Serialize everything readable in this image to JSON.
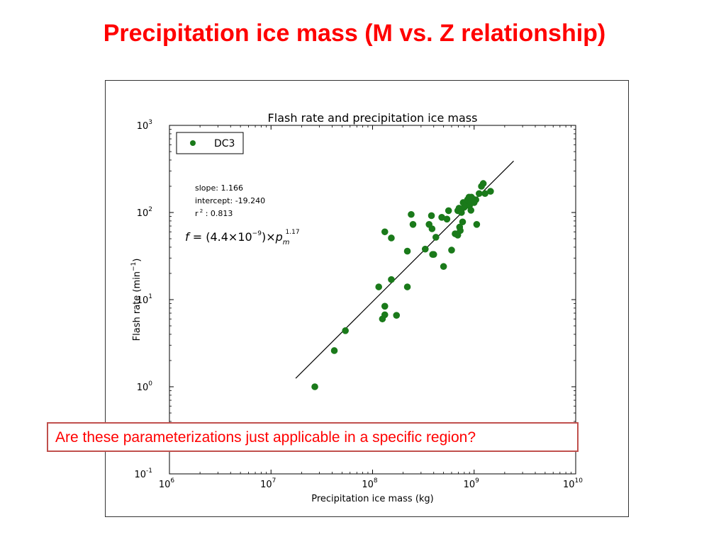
{
  "slide": {
    "title": "Precipitation ice mass (M vs. Z relationship)",
    "callout": "Are these parameterizations just applicable in a specific region?",
    "accent_color": "#ff0000",
    "callout_border_color": "#c0504d"
  },
  "chart_data": {
    "type": "scatter",
    "title": "Flash rate and precipitation ice mass",
    "xlabel": "Precipitation ice mass (kg)",
    "ylabel": "Flash rate (min",
    "ylabel_sup": "−1",
    "ylabel_tail": ")",
    "x_scale": "log",
    "y_scale": "log",
    "xlim": [
      1000000,
      10000000000
    ],
    "ylim": [
      0.1,
      1000
    ],
    "x_ticks": [
      {
        "base": "10",
        "exp": "6",
        "value": 1000000
      },
      {
        "base": "10",
        "exp": "7",
        "value": 10000000
      },
      {
        "base": "10",
        "exp": "8",
        "value": 100000000
      },
      {
        "base": "10",
        "exp": "9",
        "value": 1000000000
      },
      {
        "base": "10",
        "exp": "10",
        "value": 10000000000
      }
    ],
    "y_ticks": [
      {
        "base": "10",
        "exp": "-1",
        "value": 0.1
      },
      {
        "base": "10",
        "exp": "0",
        "value": 1
      },
      {
        "base": "10",
        "exp": "1",
        "value": 10
      },
      {
        "base": "10",
        "exp": "2",
        "value": 100
      },
      {
        "base": "10",
        "exp": "3",
        "value": 1000
      }
    ],
    "grid": false,
    "legend": {
      "position": "top-left",
      "label": "DC3",
      "color": "#1a7a1a"
    },
    "stats": {
      "slope": "slope: 1.166",
      "intercept": "intercept: -19.240",
      "r2_prefix": "r",
      "r2_sup": "2",
      "r2_value": ": 0.813"
    },
    "equation": {
      "f": "f",
      "eq": " = (4.4×10",
      "exp": "−9",
      "mid": ")×",
      "p": "p",
      "sub": "m",
      "sup": "1.17"
    },
    "fit_line": {
      "x": [
        17500000,
        2450000000
      ],
      "y": [
        1.25,
        390
      ]
    },
    "series": [
      {
        "name": "DC3",
        "color": "#1a7a1a",
        "points": [
          {
            "x": 27000000,
            "y": 1.0
          },
          {
            "x": 42000000,
            "y": 2.6
          },
          {
            "x": 54000000,
            "y": 4.4
          },
          {
            "x": 115000000,
            "y": 14
          },
          {
            "x": 125000000,
            "y": 6.0
          },
          {
            "x": 132000000,
            "y": 6.7
          },
          {
            "x": 132000000,
            "y": 8.4
          },
          {
            "x": 132000000,
            "y": 60
          },
          {
            "x": 153000000,
            "y": 17
          },
          {
            "x": 153000000,
            "y": 51
          },
          {
            "x": 172000000,
            "y": 6.6
          },
          {
            "x": 220000000,
            "y": 14
          },
          {
            "x": 220000000,
            "y": 36
          },
          {
            "x": 240000000,
            "y": 95
          },
          {
            "x": 250000000,
            "y": 73
          },
          {
            "x": 330000000,
            "y": 38
          },
          {
            "x": 360000000,
            "y": 73
          },
          {
            "x": 380000000,
            "y": 92
          },
          {
            "x": 385000000,
            "y": 65
          },
          {
            "x": 390000000,
            "y": 33
          },
          {
            "x": 420000000,
            "y": 52
          },
          {
            "x": 400000000,
            "y": 33
          },
          {
            "x": 480000000,
            "y": 88
          },
          {
            "x": 500000000,
            "y": 24
          },
          {
            "x": 540000000,
            "y": 84
          },
          {
            "x": 560000000,
            "y": 105
          },
          {
            "x": 600000000,
            "y": 37
          },
          {
            "x": 650000000,
            "y": 57
          },
          {
            "x": 690000000,
            "y": 55
          },
          {
            "x": 690000000,
            "y": 105
          },
          {
            "x": 710000000,
            "y": 112
          },
          {
            "x": 720000000,
            "y": 68
          },
          {
            "x": 730000000,
            "y": 62
          },
          {
            "x": 750000000,
            "y": 100
          },
          {
            "x": 770000000,
            "y": 78
          },
          {
            "x": 780000000,
            "y": 130
          },
          {
            "x": 800000000,
            "y": 115
          },
          {
            "x": 830000000,
            "y": 120
          },
          {
            "x": 860000000,
            "y": 140
          },
          {
            "x": 890000000,
            "y": 150
          },
          {
            "x": 900000000,
            "y": 120
          },
          {
            "x": 920000000,
            "y": 130
          },
          {
            "x": 930000000,
            "y": 106
          },
          {
            "x": 940000000,
            "y": 150
          },
          {
            "x": 960000000,
            "y": 145
          },
          {
            "x": 1000000000,
            "y": 130
          },
          {
            "x": 1040000000,
            "y": 140
          },
          {
            "x": 1060000000,
            "y": 73
          },
          {
            "x": 1120000000,
            "y": 165
          },
          {
            "x": 1180000000,
            "y": 200
          },
          {
            "x": 1230000000,
            "y": 215
          },
          {
            "x": 1280000000,
            "y": 165
          },
          {
            "x": 1450000000,
            "y": 175
          }
        ]
      }
    ]
  }
}
